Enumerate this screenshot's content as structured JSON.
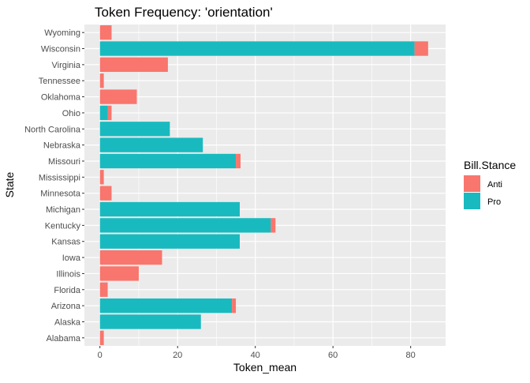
{
  "chart_data": {
    "type": "bar",
    "orientation": "horizontal",
    "stacked": true,
    "title": "Token Frequency: 'orientation'",
    "xlabel": "Token_mean",
    "ylabel": "State",
    "xlim": [
      -4,
      89
    ],
    "xticks": [
      0,
      20,
      40,
      60,
      80
    ],
    "grid": true,
    "legend": {
      "title": "Bill.Stance",
      "position": "right"
    },
    "categories": [
      "Wyoming",
      "Wisconsin",
      "Virginia",
      "Tennessee",
      "Oklahoma",
      "Ohio",
      "North Carolina",
      "Nebraska",
      "Missouri",
      "Mississippi",
      "Minnesota",
      "Michigan",
      "Kentucky",
      "Kansas",
      "Iowa",
      "Illinois",
      "Florida",
      "Arizona",
      "Alaska",
      "Alabama"
    ],
    "series": [
      {
        "name": "Pro",
        "color": "#19BABF",
        "values": [
          0,
          81,
          0,
          0,
          0,
          2,
          18,
          26.5,
          35,
          0,
          0,
          36,
          44,
          36,
          0,
          0,
          0,
          34,
          26,
          0
        ]
      },
      {
        "name": "Anti",
        "color": "#F8766D",
        "values": [
          3,
          3.5,
          17.5,
          1,
          9.5,
          1,
          0,
          0,
          1.2,
          1,
          3,
          0,
          1.2,
          0,
          16,
          10,
          2,
          1,
          0,
          1
        ]
      }
    ]
  }
}
